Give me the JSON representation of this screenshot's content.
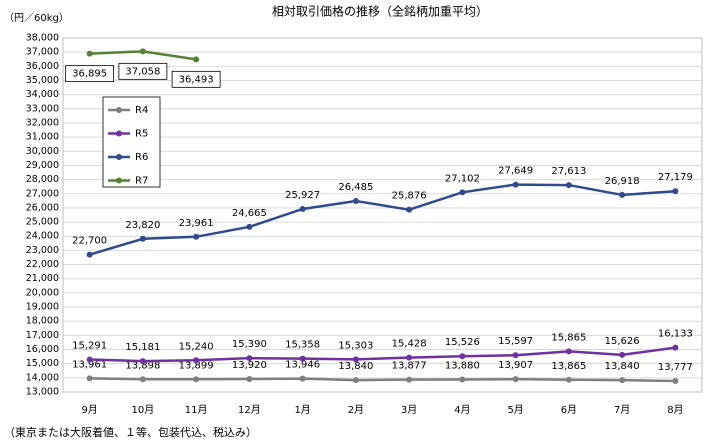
{
  "chart_data": {
    "type": "line",
    "title": "相対取引価格の推移（全銘柄加重平均）",
    "y_label": "（円／60kg）",
    "footnote": "（東京または大阪着値、１等、包装代込、税込み）",
    "categories": [
      "9月",
      "10月",
      "11月",
      "12月",
      "1月",
      "2月",
      "3月",
      "4月",
      "5月",
      "6月",
      "7月",
      "8月"
    ],
    "ylim": [
      13000,
      38000
    ],
    "yticks": [
      {
        "value": 13000,
        "label": "13,000"
      },
      {
        "value": 14000,
        "label": "14,000"
      },
      {
        "value": 15000,
        "label": "15,000"
      },
      {
        "value": 16000,
        "label": "16,000"
      },
      {
        "value": 17000,
        "label": "17,000"
      },
      {
        "value": 18000,
        "label": "18,000"
      },
      {
        "value": 19000,
        "label": "19,000"
      },
      {
        "value": 20000,
        "label": "20,000"
      },
      {
        "value": 21000,
        "label": "21,000"
      },
      {
        "value": 22000,
        "label": "22,000"
      },
      {
        "value": 23000,
        "label": "23,000"
      },
      {
        "value": 24000,
        "label": "24,000"
      },
      {
        "value": 25000,
        "label": "25,000"
      },
      {
        "value": 26000,
        "label": "26,000"
      },
      {
        "value": 27000,
        "label": "27,000"
      },
      {
        "value": 28000,
        "label": "28,000"
      },
      {
        "value": 29000,
        "label": "29,000"
      },
      {
        "value": 30000,
        "label": "30,000"
      },
      {
        "value": 31000,
        "label": "31,000"
      },
      {
        "value": 32000,
        "label": "32,000"
      },
      {
        "value": 33000,
        "label": "33,000"
      },
      {
        "value": 34000,
        "label": "34,000"
      },
      {
        "value": 35000,
        "label": "35,000"
      },
      {
        "value": 36000,
        "label": "36,000"
      },
      {
        "value": 37000,
        "label": "37,000"
      },
      {
        "value": 38000,
        "label": "38,000"
      }
    ],
    "grid": true,
    "legend": "upper left",
    "series": [
      {
        "name": "R4",
        "color": "#7f7f7f",
        "values": [
          13961,
          13898,
          13899,
          13920,
          13946,
          13840,
          13877,
          13880,
          13907,
          13865,
          13840,
          13777
        ],
        "value_labels": [
          "13,961",
          "13,898",
          "13,899",
          "13,920",
          "13,946",
          "13,840",
          "13,877",
          "13,880",
          "13,907",
          "13,865",
          "13,840",
          "13,777"
        ]
      },
      {
        "name": "R5",
        "color": "#7030a0",
        "values": [
          15291,
          15181,
          15240,
          15390,
          15358,
          15303,
          15428,
          15526,
          15597,
          15865,
          15626,
          16133
        ],
        "value_labels": [
          "15,291",
          "15,181",
          "15,240",
          "15,390",
          "15,358",
          "15,303",
          "15,428",
          "15,526",
          "15,597",
          "15,865",
          "15,626",
          "16,133"
        ]
      },
      {
        "name": "R6",
        "color": "#2f4b8c",
        "values": [
          22700,
          23820,
          23961,
          24665,
          25927,
          26485,
          25876,
          27102,
          27649,
          27613,
          26918,
          27179
        ],
        "value_labels": [
          "22,700",
          "23,820",
          "23,961",
          "24,665",
          "25,927",
          "26,485",
          "25,876",
          "27,102",
          "27,649",
          "27,613",
          "26,918",
          "27,179"
        ]
      },
      {
        "name": "R7",
        "color": "#548235",
        "label_position": "below",
        "label_box": true,
        "values": [
          36895,
          37058,
          36493,
          null,
          null,
          null,
          null,
          null,
          null,
          null,
          null,
          null
        ],
        "value_labels": [
          "36,895",
          "37,058",
          "36,493",
          null,
          null,
          null,
          null,
          null,
          null,
          null,
          null,
          null
        ]
      }
    ]
  }
}
